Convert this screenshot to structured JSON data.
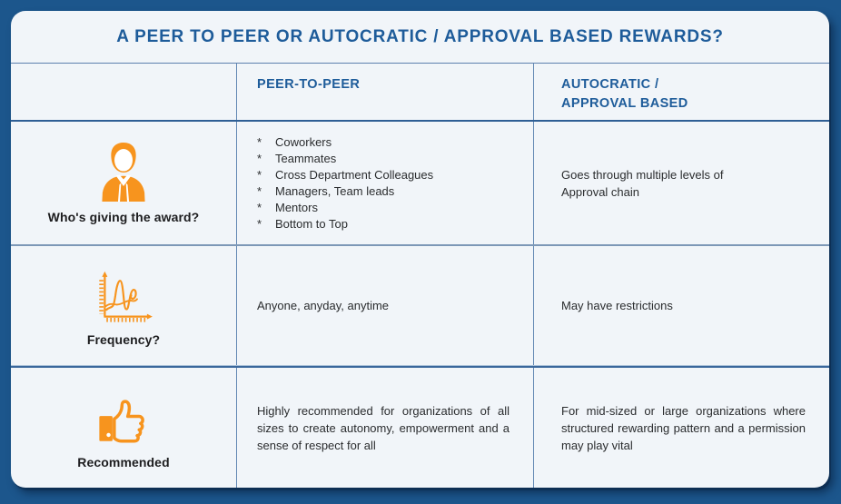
{
  "colors": {
    "bg": "#1C568C",
    "card-bg": "#F1F5F9",
    "accent": "#F7941E",
    "heading-blue": "#1E5C9A",
    "text-dark": "#2A2C2E",
    "label-dark": "#1D1D1F"
  },
  "bullet_char": "*",
  "title": "A PEER TO PEER OR AUTOCRATIC / APPROVAL BASED REWARDS?",
  "columns": {
    "peer": "PEER-TO-PEER",
    "autocratic": "AUTOCRATIC /\nAPPROVAL BASED"
  },
  "rows": {
    "giving": {
      "label": "Who's giving the award?",
      "icon": "businessman-icon",
      "peer_items": [
        "Coworkers",
        "Teammates",
        "Cross Department Colleagues",
        "Managers, Team leads",
        "Mentors",
        "Bottom to Top"
      ],
      "autocratic": "Goes through multiple levels of\nApproval chain"
    },
    "frequency": {
      "label": "Frequency?",
      "icon": "line-chart-icon",
      "peer": "Anyone, anyday, anytime",
      "autocratic": "May have restrictions"
    },
    "recommended": {
      "label": "Recommended",
      "icon": "thumbs-up-icon",
      "peer": "Highly recommended for organizations of all sizes  to create autonomy, empowerment and a sense of respect for all",
      "autocratic": "For mid-sized or large organizations where structured rewarding pattern and a permission may play vital"
    }
  }
}
